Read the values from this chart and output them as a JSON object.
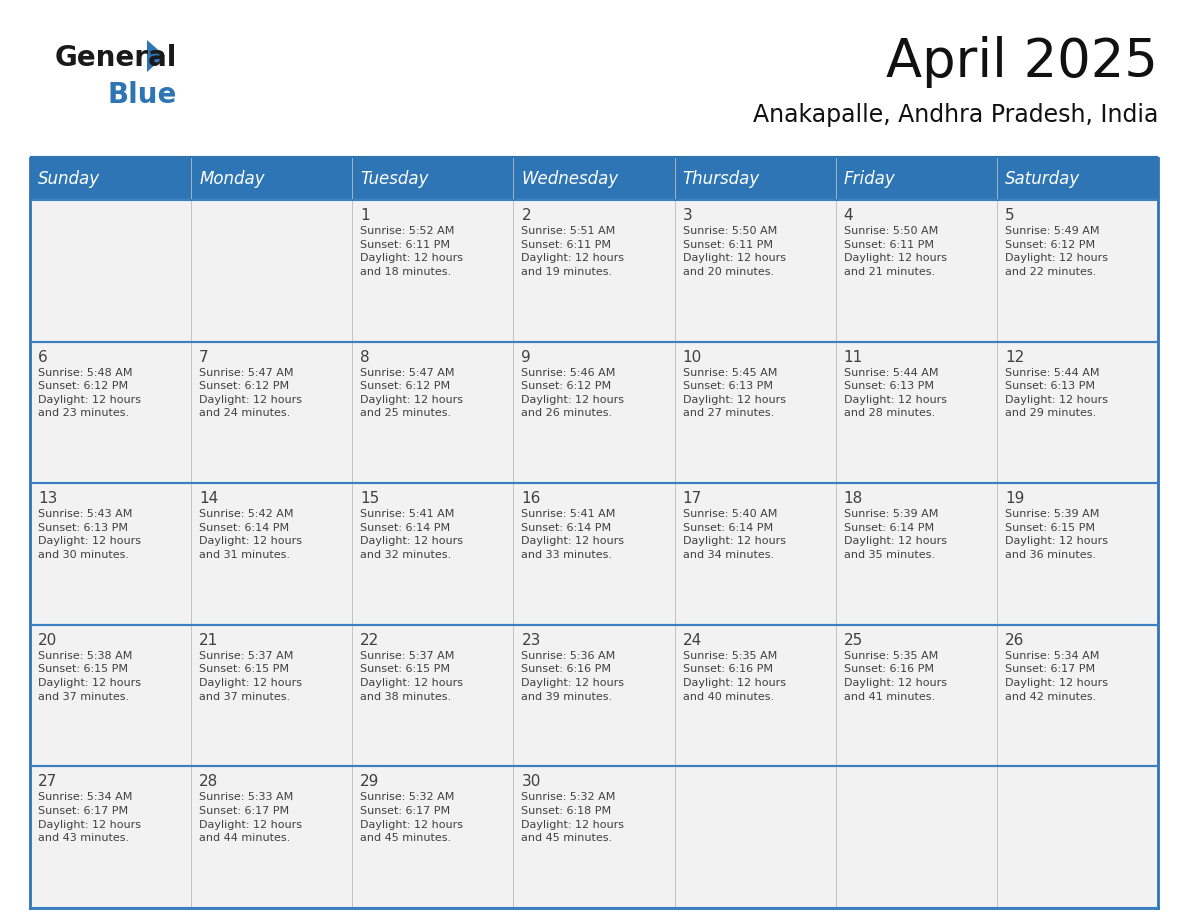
{
  "title": "April 2025",
  "subtitle": "Anakapalle, Andhra Pradesh, India",
  "header_bg": "#2E75B6",
  "header_text_color": "#FFFFFF",
  "cell_bg": "#F2F2F2",
  "border_color": "#2E75B6",
  "row_divider_color": "#3A7FC1",
  "text_color": "#404040",
  "days_of_week": [
    "Sunday",
    "Monday",
    "Tuesday",
    "Wednesday",
    "Thursday",
    "Friday",
    "Saturday"
  ],
  "calendar": [
    [
      {
        "day": "",
        "info": ""
      },
      {
        "day": "",
        "info": ""
      },
      {
        "day": "1",
        "info": "Sunrise: 5:52 AM\nSunset: 6:11 PM\nDaylight: 12 hours\nand 18 minutes."
      },
      {
        "day": "2",
        "info": "Sunrise: 5:51 AM\nSunset: 6:11 PM\nDaylight: 12 hours\nand 19 minutes."
      },
      {
        "day": "3",
        "info": "Sunrise: 5:50 AM\nSunset: 6:11 PM\nDaylight: 12 hours\nand 20 minutes."
      },
      {
        "day": "4",
        "info": "Sunrise: 5:50 AM\nSunset: 6:11 PM\nDaylight: 12 hours\nand 21 minutes."
      },
      {
        "day": "5",
        "info": "Sunrise: 5:49 AM\nSunset: 6:12 PM\nDaylight: 12 hours\nand 22 minutes."
      }
    ],
    [
      {
        "day": "6",
        "info": "Sunrise: 5:48 AM\nSunset: 6:12 PM\nDaylight: 12 hours\nand 23 minutes."
      },
      {
        "day": "7",
        "info": "Sunrise: 5:47 AM\nSunset: 6:12 PM\nDaylight: 12 hours\nand 24 minutes."
      },
      {
        "day": "8",
        "info": "Sunrise: 5:47 AM\nSunset: 6:12 PM\nDaylight: 12 hours\nand 25 minutes."
      },
      {
        "day": "9",
        "info": "Sunrise: 5:46 AM\nSunset: 6:12 PM\nDaylight: 12 hours\nand 26 minutes."
      },
      {
        "day": "10",
        "info": "Sunrise: 5:45 AM\nSunset: 6:13 PM\nDaylight: 12 hours\nand 27 minutes."
      },
      {
        "day": "11",
        "info": "Sunrise: 5:44 AM\nSunset: 6:13 PM\nDaylight: 12 hours\nand 28 minutes."
      },
      {
        "day": "12",
        "info": "Sunrise: 5:44 AM\nSunset: 6:13 PM\nDaylight: 12 hours\nand 29 minutes."
      }
    ],
    [
      {
        "day": "13",
        "info": "Sunrise: 5:43 AM\nSunset: 6:13 PM\nDaylight: 12 hours\nand 30 minutes."
      },
      {
        "day": "14",
        "info": "Sunrise: 5:42 AM\nSunset: 6:14 PM\nDaylight: 12 hours\nand 31 minutes."
      },
      {
        "day": "15",
        "info": "Sunrise: 5:41 AM\nSunset: 6:14 PM\nDaylight: 12 hours\nand 32 minutes."
      },
      {
        "day": "16",
        "info": "Sunrise: 5:41 AM\nSunset: 6:14 PM\nDaylight: 12 hours\nand 33 minutes."
      },
      {
        "day": "17",
        "info": "Sunrise: 5:40 AM\nSunset: 6:14 PM\nDaylight: 12 hours\nand 34 minutes."
      },
      {
        "day": "18",
        "info": "Sunrise: 5:39 AM\nSunset: 6:14 PM\nDaylight: 12 hours\nand 35 minutes."
      },
      {
        "day": "19",
        "info": "Sunrise: 5:39 AM\nSunset: 6:15 PM\nDaylight: 12 hours\nand 36 minutes."
      }
    ],
    [
      {
        "day": "20",
        "info": "Sunrise: 5:38 AM\nSunset: 6:15 PM\nDaylight: 12 hours\nand 37 minutes."
      },
      {
        "day": "21",
        "info": "Sunrise: 5:37 AM\nSunset: 6:15 PM\nDaylight: 12 hours\nand 37 minutes."
      },
      {
        "day": "22",
        "info": "Sunrise: 5:37 AM\nSunset: 6:15 PM\nDaylight: 12 hours\nand 38 minutes."
      },
      {
        "day": "23",
        "info": "Sunrise: 5:36 AM\nSunset: 6:16 PM\nDaylight: 12 hours\nand 39 minutes."
      },
      {
        "day": "24",
        "info": "Sunrise: 5:35 AM\nSunset: 6:16 PM\nDaylight: 12 hours\nand 40 minutes."
      },
      {
        "day": "25",
        "info": "Sunrise: 5:35 AM\nSunset: 6:16 PM\nDaylight: 12 hours\nand 41 minutes."
      },
      {
        "day": "26",
        "info": "Sunrise: 5:34 AM\nSunset: 6:17 PM\nDaylight: 12 hours\nand 42 minutes."
      }
    ],
    [
      {
        "day": "27",
        "info": "Sunrise: 5:34 AM\nSunset: 6:17 PM\nDaylight: 12 hours\nand 43 minutes."
      },
      {
        "day": "28",
        "info": "Sunrise: 5:33 AM\nSunset: 6:17 PM\nDaylight: 12 hours\nand 44 minutes."
      },
      {
        "day": "29",
        "info": "Sunrise: 5:32 AM\nSunset: 6:17 PM\nDaylight: 12 hours\nand 45 minutes."
      },
      {
        "day": "30",
        "info": "Sunrise: 5:32 AM\nSunset: 6:18 PM\nDaylight: 12 hours\nand 45 minutes."
      },
      {
        "day": "",
        "info": ""
      },
      {
        "day": "",
        "info": ""
      },
      {
        "day": "",
        "info": ""
      }
    ]
  ],
  "logo_color_general": "#1a1a1a",
  "logo_color_blue": "#2E75B6",
  "logo_triangle_color": "#2E75B6",
  "title_fontsize": 38,
  "subtitle_fontsize": 17,
  "header_fontsize": 12,
  "day_num_fontsize": 11,
  "info_fontsize": 8
}
